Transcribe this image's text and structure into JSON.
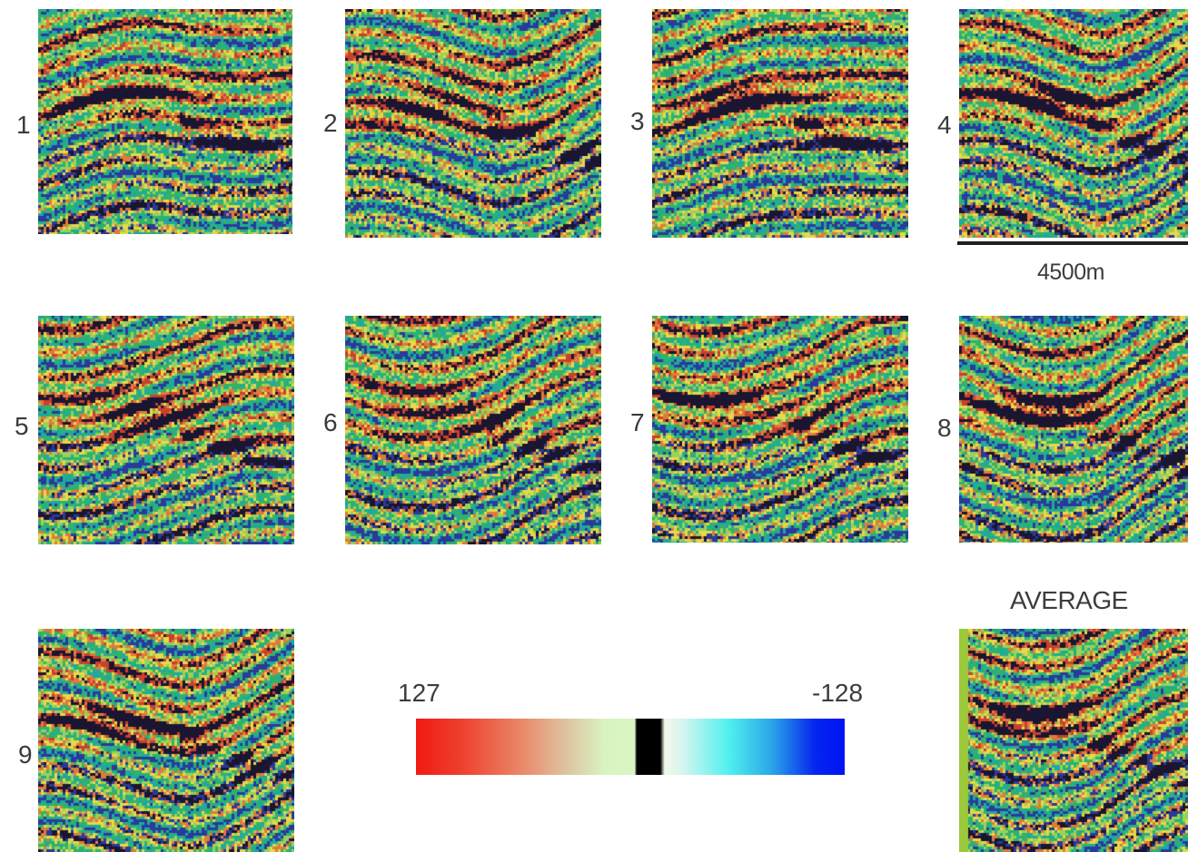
{
  "panels": [
    {
      "label": "1",
      "seed": 11
    },
    {
      "label": "2",
      "seed": 23
    },
    {
      "label": "3",
      "seed": 37
    },
    {
      "label": "4",
      "seed": 41
    },
    {
      "label": "5",
      "seed": 53
    },
    {
      "label": "6",
      "seed": 67
    },
    {
      "label": "7",
      "seed": 71
    },
    {
      "label": "8",
      "seed": 83
    },
    {
      "label": "9",
      "seed": 97
    },
    {
      "label": "",
      "seed": 101
    }
  ],
  "scale_bar": {
    "text": "4500m"
  },
  "average": {
    "title": "AVERAGE",
    "side_strip_color": "#9bc93a"
  },
  "colorbar": {
    "max_label": "127",
    "min_label": "-128",
    "colors": [
      "#f11a12",
      "#e98a6a",
      "#d8f6c3",
      "#000000",
      "#4ff0ef",
      "#0012f4"
    ]
  },
  "palette": {
    "green": "#2fb36a",
    "teal": "#1fa8a0",
    "yellow": "#e8d84a",
    "orange": "#e07a3a",
    "red": "#c84030",
    "blue": "#2a3a9a",
    "dark": "#1a1530",
    "light_green": "#9bd05a"
  }
}
